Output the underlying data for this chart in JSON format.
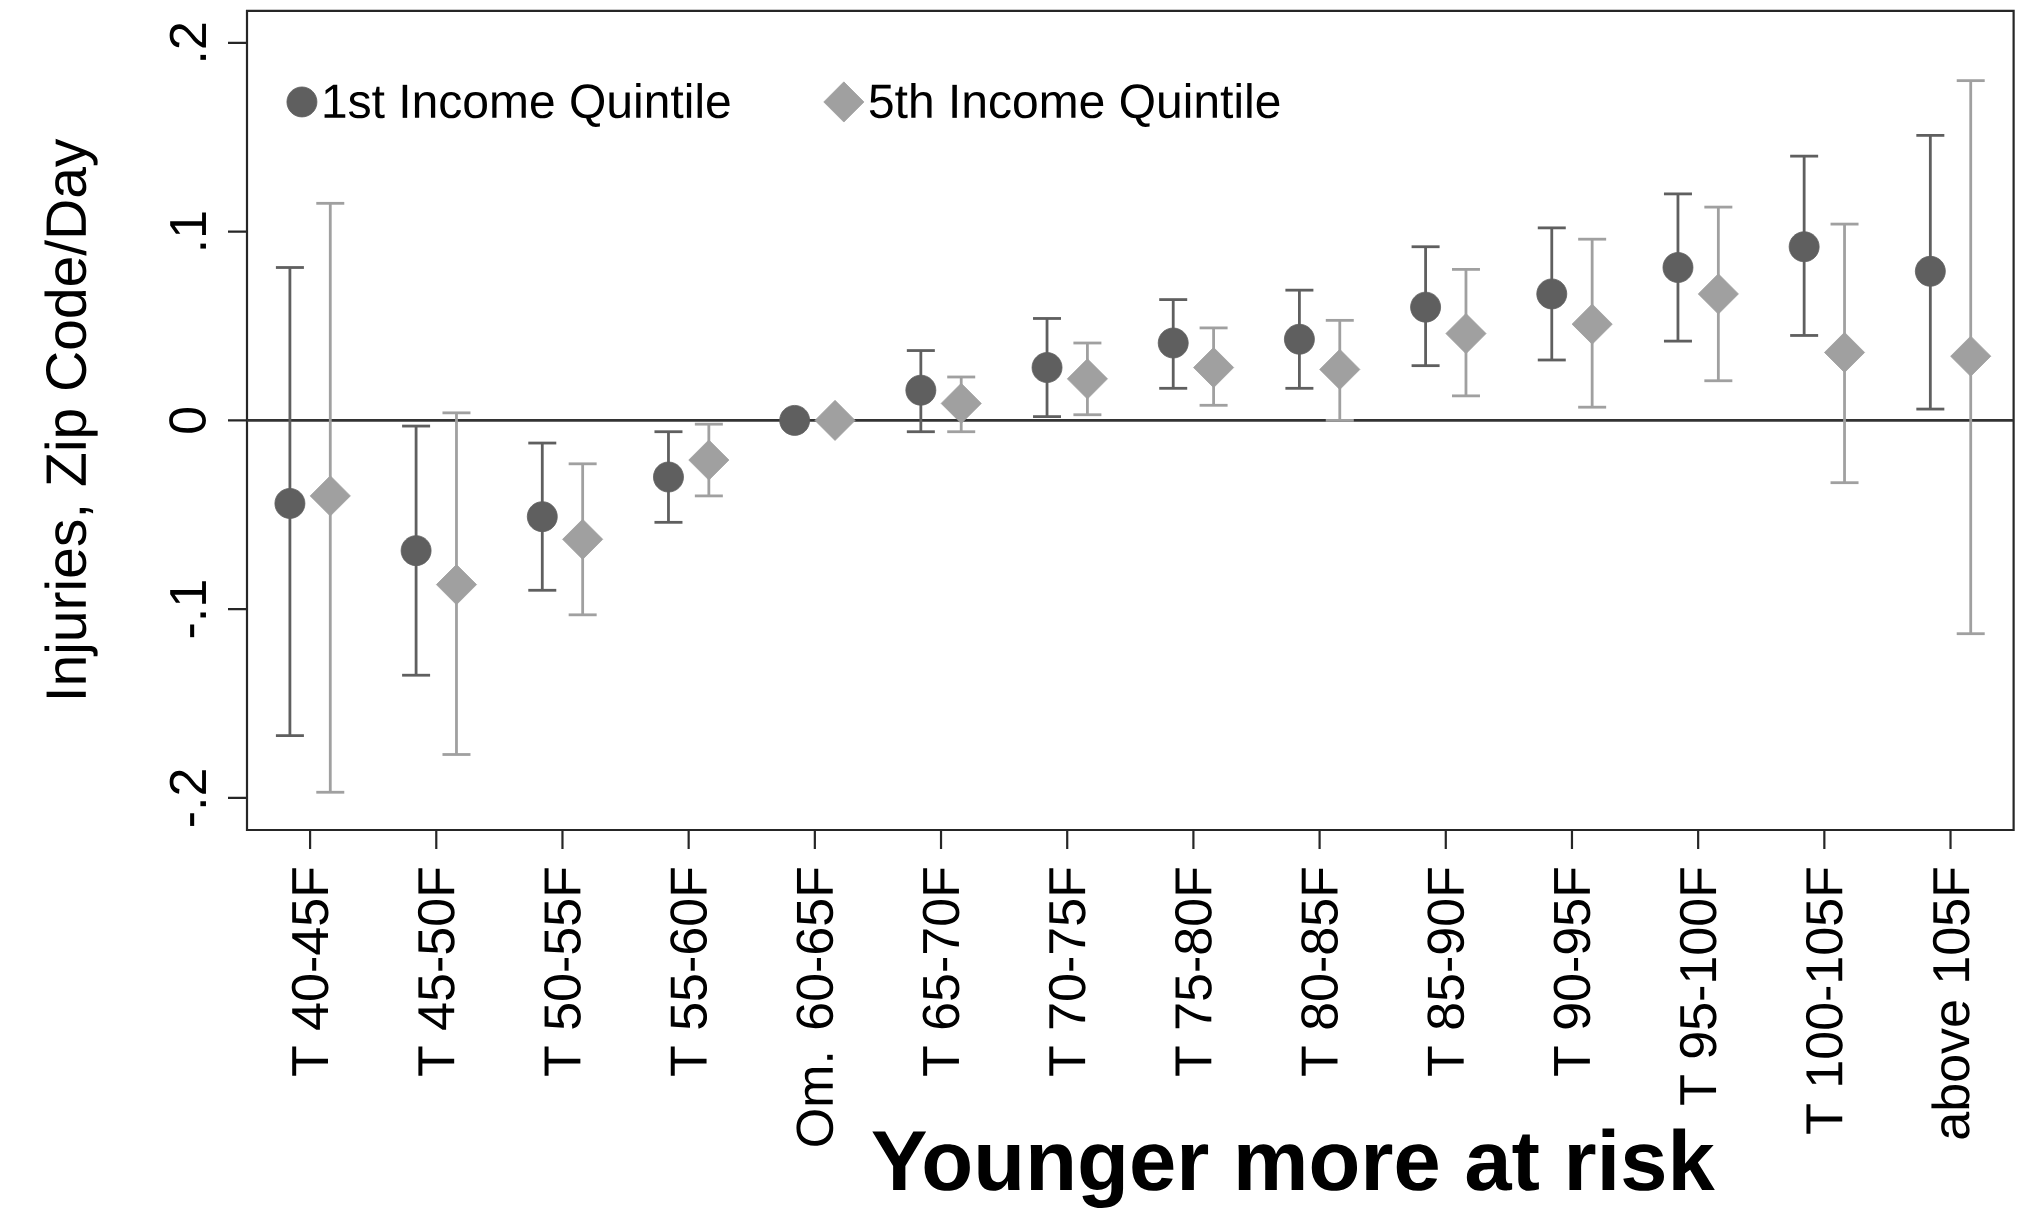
{
  "chart_data": {
    "type": "scatter",
    "xlabel": "Younger more at risk",
    "ylabel": "Injuries, Zip Code/Day",
    "categories": [
      "T 40-45F",
      "T 45-50F",
      "T 50-55F",
      "T 55-60F",
      "Om. 60-65F",
      "T 65-70F",
      "T 70-75F",
      "T 75-80F",
      "T 80-85F",
      "T 85-90F",
      "T 90-95F",
      "T 95-100F",
      "T 100-105F",
      "above 105F"
    ],
    "series": [
      {
        "name": "1st Income Quintile",
        "color": "#5f5f5f",
        "marker": "circle",
        "values": [
          -0.044,
          -0.069,
          -0.051,
          -0.03,
          0,
          0.016,
          0.028,
          0.041,
          0.043,
          0.06,
          0.067,
          0.081,
          0.092,
          0.079
        ],
        "errors": [
          [
            -0.167,
            0.081
          ],
          [
            -0.135,
            -0.003
          ],
          [
            -0.09,
            -0.012
          ],
          [
            -0.054,
            -0.006
          ],
          null,
          [
            -0.006,
            0.037
          ],
          [
            0.002,
            0.054
          ],
          [
            0.017,
            0.064
          ],
          [
            0.017,
            0.069
          ],
          [
            0.029,
            0.092
          ],
          [
            0.032,
            0.102
          ],
          [
            0.042,
            0.12
          ],
          [
            0.045,
            0.14
          ],
          [
            0.006,
            0.151
          ]
        ]
      },
      {
        "name": "5th Income Quintile",
        "color": "#a0a0a0",
        "marker": "diamond",
        "values": [
          -0.04,
          -0.087,
          -0.063,
          -0.021,
          0,
          0.009,
          0.022,
          0.028,
          0.027,
          0.046,
          0.051,
          0.067,
          0.036,
          0.034
        ],
        "errors": [
          [
            -0.197,
            0.115
          ],
          [
            -0.177,
            0.004
          ],
          [
            -0.103,
            -0.023
          ],
          [
            -0.04,
            -0.002
          ],
          null,
          [
            -0.006,
            0.023
          ],
          [
            0.003,
            0.041
          ],
          [
            0.008,
            0.049
          ],
          [
            0,
            0.053
          ],
          [
            0.013,
            0.08
          ],
          [
            0.007,
            0.096
          ],
          [
            0.021,
            0.113
          ],
          [
            -0.033,
            0.104
          ],
          [
            -0.113,
            0.18
          ]
        ]
      }
    ],
    "ylim": [
      -0.217,
      0.217
    ],
    "yticks": [
      {
        "value": -0.2,
        "label": "-.2"
      },
      {
        "value": -0.1,
        "label": "-.1"
      },
      0,
      {
        "value": 0.1,
        "label": ".1"
      },
      {
        "value": 0.2,
        "label": ".2"
      }
    ],
    "ref_lines": [
      {
        "axis": "y",
        "value": 0,
        "color": "#333333"
      }
    ],
    "legend": "top left"
  }
}
